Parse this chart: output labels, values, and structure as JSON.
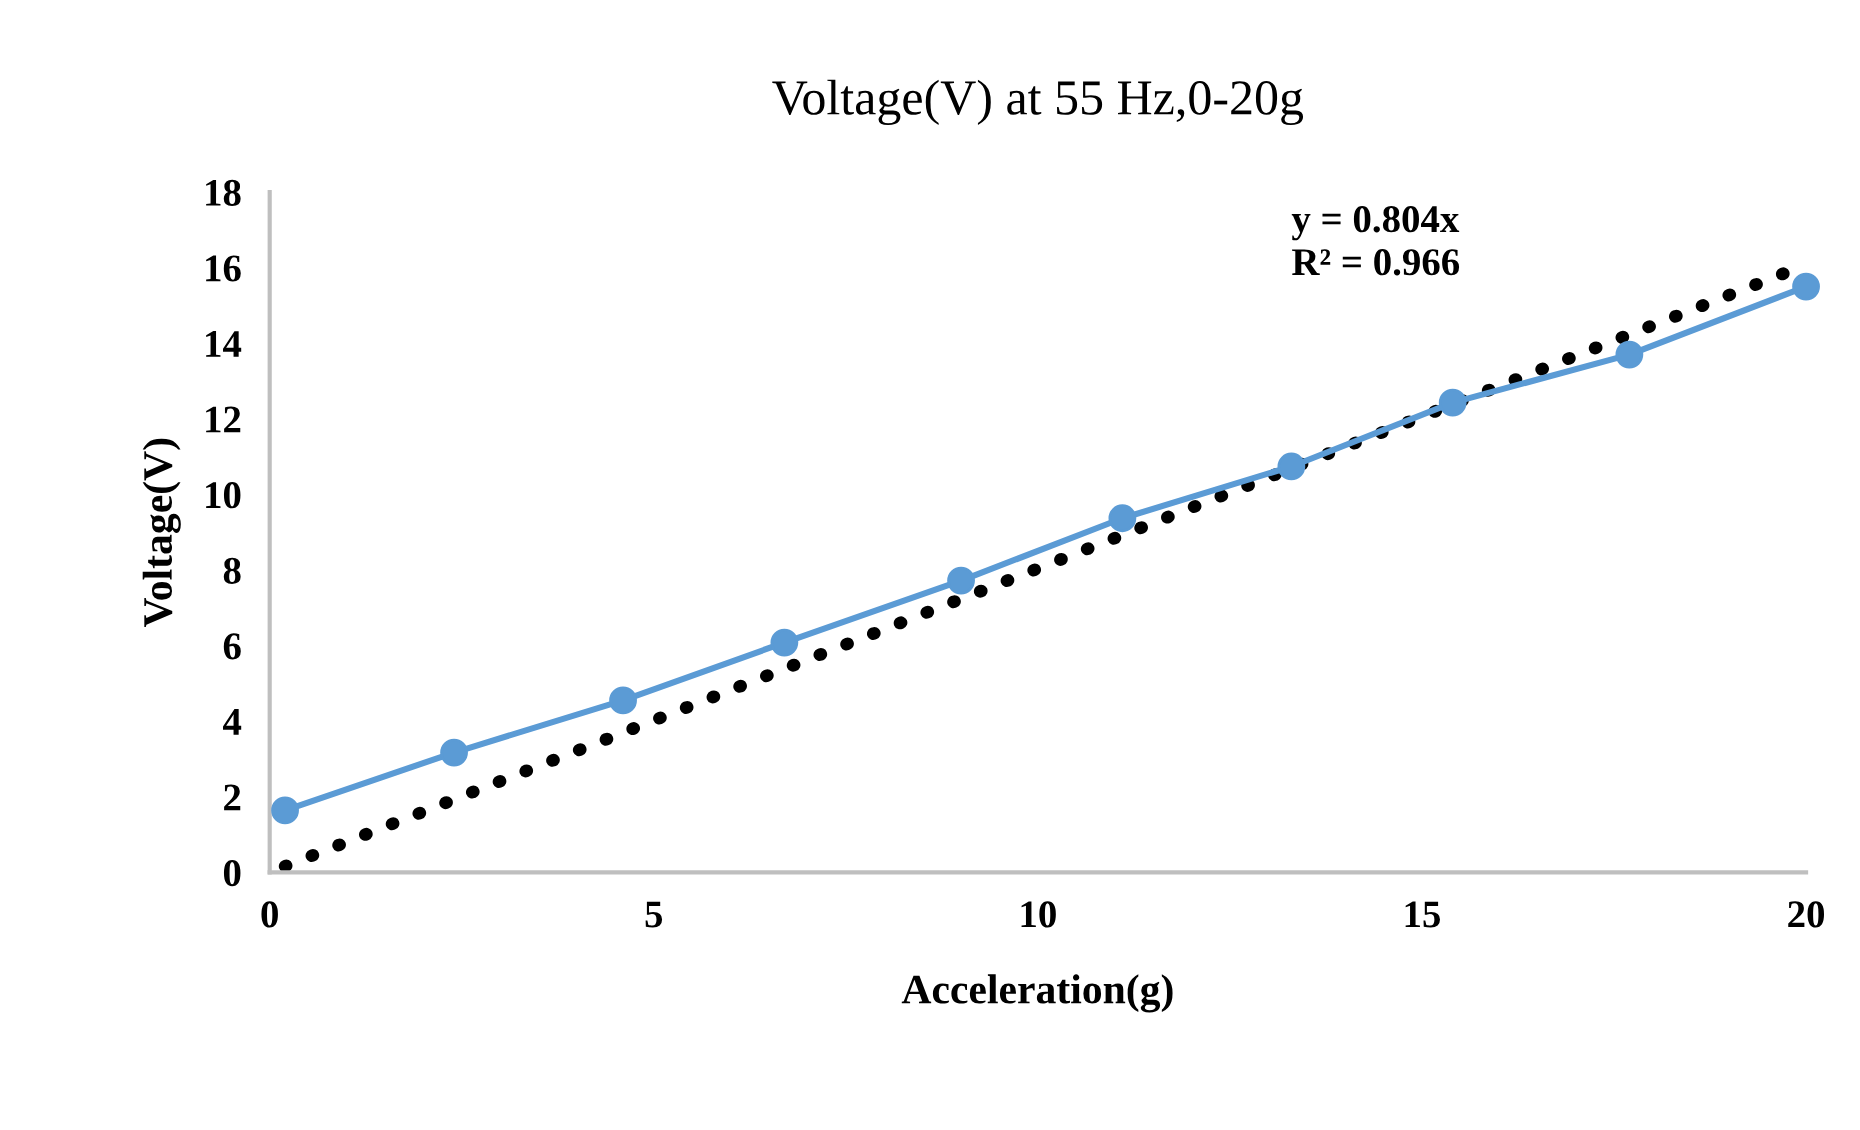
{
  "chart_data": {
    "type": "line",
    "title": "Voltage(V) at 55 Hz,0-20g",
    "xlabel": "Acceleration(g)",
    "ylabel": "Voltage(V)",
    "series": [
      {
        "color": "#5b9bd5",
        "marker": "circle",
        "line_style": "solid",
        "x": [
          0.2,
          2.4,
          4.6,
          6.7,
          9.0,
          11.1,
          13.3,
          15.4,
          17.7,
          20.0
        ],
        "values": [
          1.64,
          3.17,
          4.55,
          6.08,
          7.72,
          9.37,
          10.74,
          12.43,
          13.7,
          15.5
        ]
      },
      {
        "color": "#000000",
        "marker": "none",
        "line_style": "dotted",
        "x": [
          0.2,
          20.0
        ],
        "values": [
          0.16,
          16.08
        ]
      }
    ],
    "annotations": [
      "y = 0.804x",
      "R² = 0.966"
    ],
    "xlim": [
      0,
      20
    ],
    "xticks": [
      0,
      5,
      10,
      15,
      20
    ],
    "ylim": [
      0,
      18
    ],
    "yticks": [
      0,
      2,
      4,
      6,
      8,
      10,
      12,
      14,
      16,
      18
    ],
    "grid": false,
    "legend": false
  }
}
